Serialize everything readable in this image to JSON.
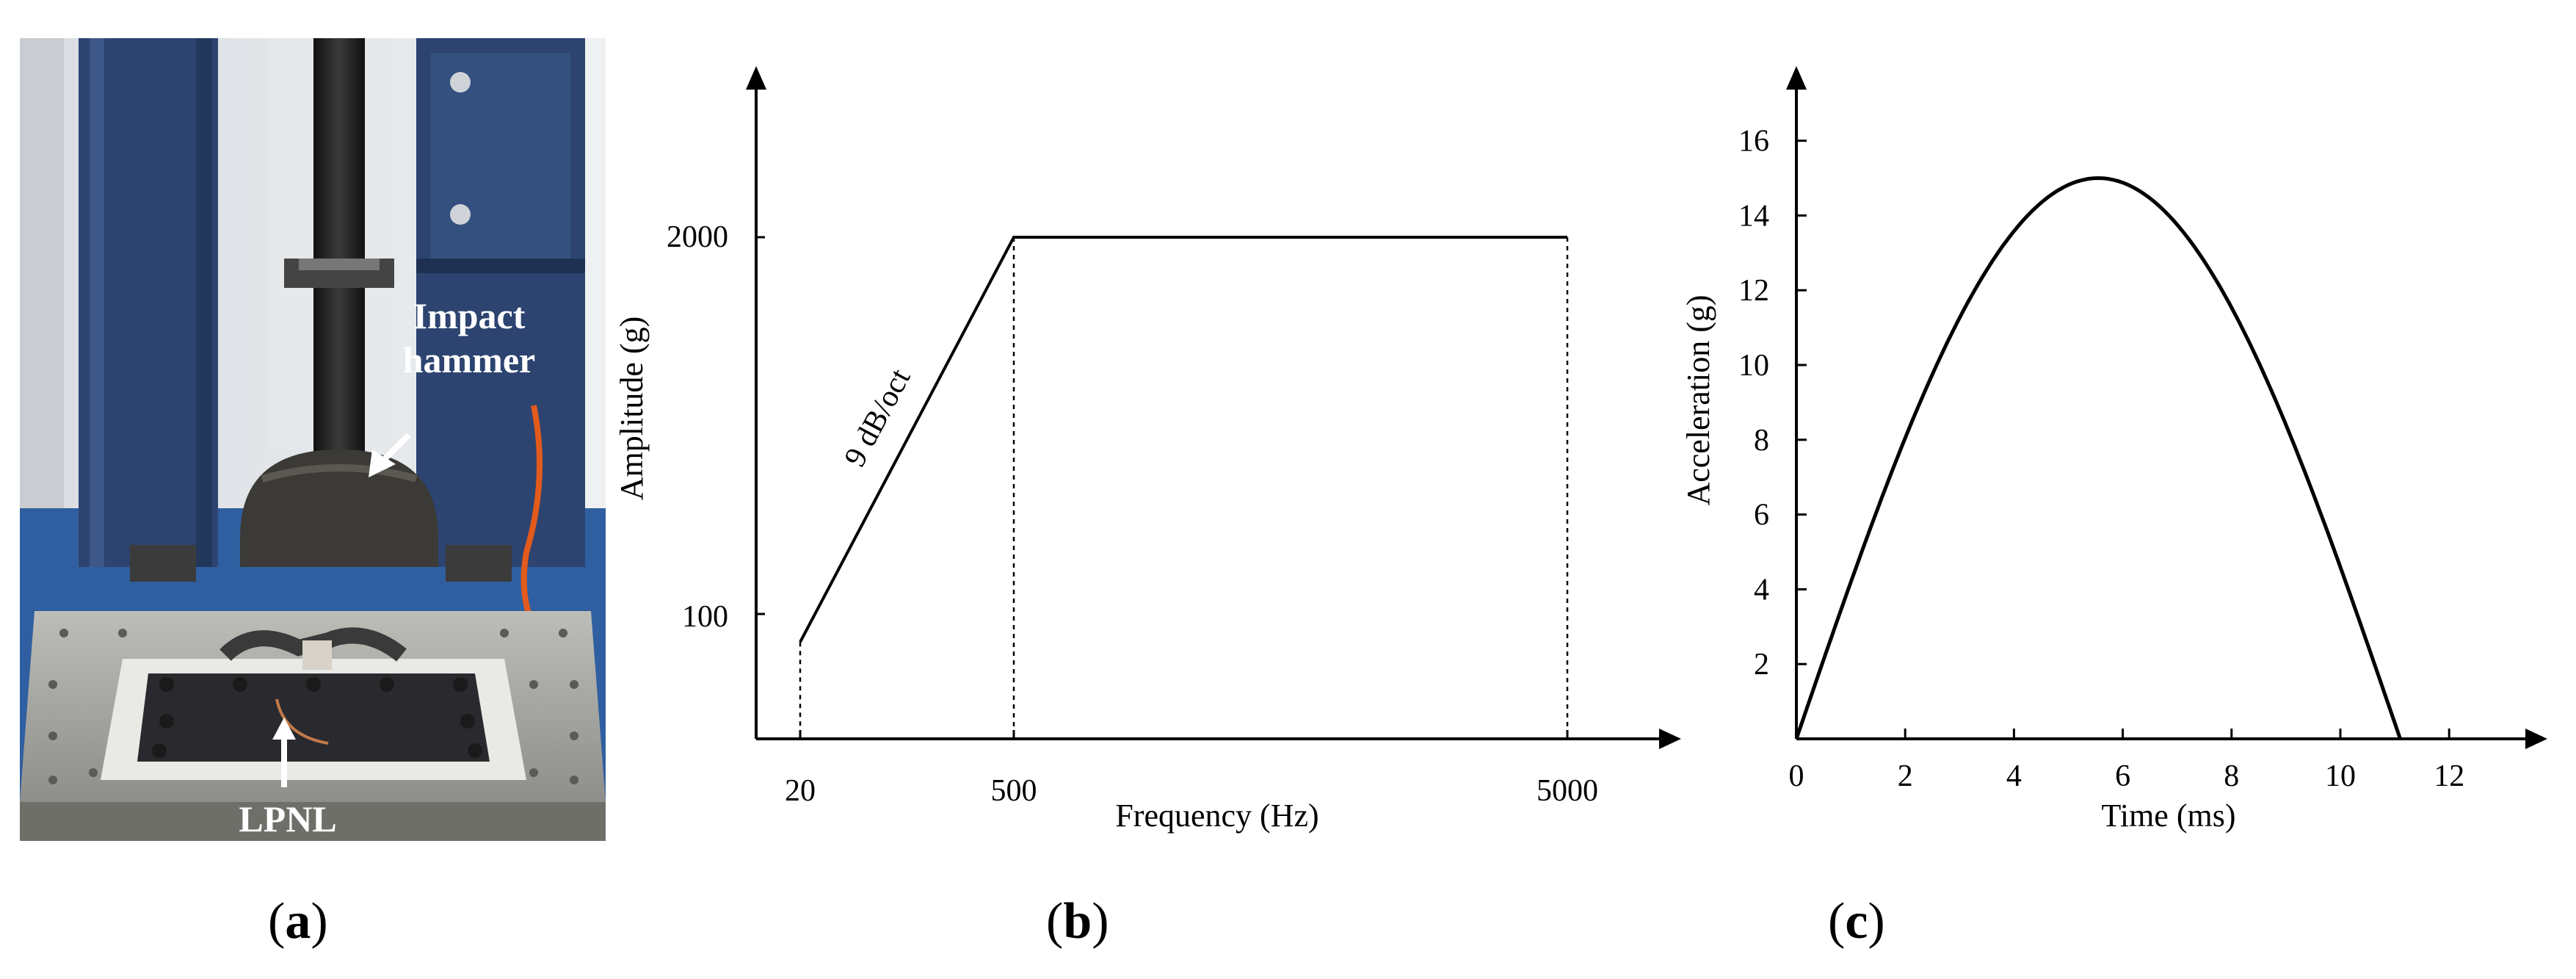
{
  "panels": {
    "a": {
      "label_open": "(",
      "label_letter": "a",
      "label_close": ")",
      "annotations": {
        "impact_line1": "Impact",
        "impact_line2": "hammer",
        "lpnl": "LPNL"
      },
      "colors": {
        "frame_blue": "#2d4470",
        "floor_blue": "#2f5fa0",
        "plate": "#2a2a2e",
        "table": "#a8a8a4"
      }
    },
    "b": {
      "label_open": "(",
      "label_letter": "b",
      "label_close": ")"
    },
    "c": {
      "label_open": "(",
      "label_letter": "c",
      "label_close": ")"
    }
  },
  "chart_data": [
    {
      "id": "b",
      "type": "line",
      "xlabel": "Frequency (Hz)",
      "ylabel": "Amplitude (g)",
      "x_ticks": [
        "20",
        "500",
        "5000"
      ],
      "y_ticks": [
        "100",
        "2000"
      ],
      "x": [
        20,
        500,
        5000
      ],
      "y": [
        80,
        2000,
        2000
      ],
      "annotation": "9 dB/oct",
      "grid": false
    },
    {
      "id": "c",
      "type": "line",
      "xlabel": "Time (ms)",
      "ylabel": "Acceleration (g)",
      "xlim": [
        0,
        13
      ],
      "ylim": [
        0,
        17
      ],
      "x_ticks": [
        0,
        2,
        4,
        6,
        8,
        10,
        12
      ],
      "y_ticks": [
        2,
        4,
        6,
        8,
        10,
        12,
        14,
        16
      ],
      "peak": 15,
      "duration": 11.1,
      "shape": "half-sine",
      "grid": false
    }
  ]
}
